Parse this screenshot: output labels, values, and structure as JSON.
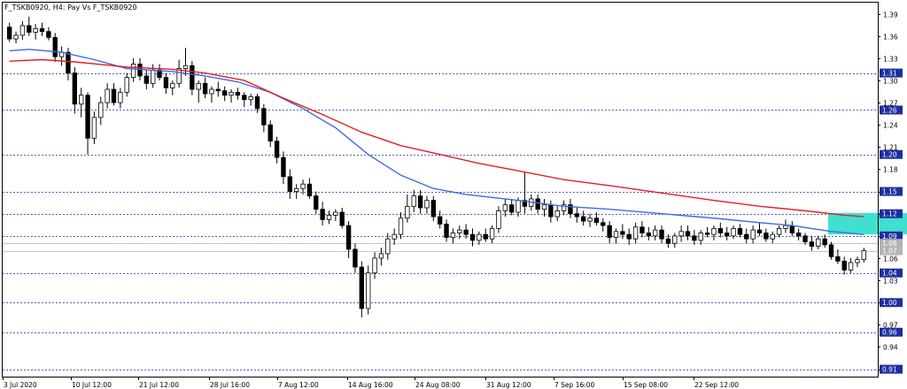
{
  "window": {
    "title": "F_TSKB0920, H4:  Pay Vs F_TSKB0920"
  },
  "colors": {
    "background": "#ffffff",
    "candle": "#000000",
    "ma_fast": "#4169e1",
    "ma_slow": "#e31e24",
    "level_line": "#1e2ea0",
    "level_badge": "#1e2ea0",
    "current_badge": "#b4b4b4",
    "zone": "#40e0d0"
  },
  "chart_data": {
    "type": "candlestick",
    "title": "",
    "ylim": [
      0.9,
      1.405
    ],
    "grid": false,
    "y_ticks": [
      "1.39",
      "1.36",
      "1.33",
      "1.30",
      "1.27",
      "1.24",
      "1.21",
      "1.18",
      "1.15",
      "1.12",
      "1.09",
      "1.06",
      "1.03",
      "1.00",
      "0.97",
      "0.94",
      "0.91"
    ],
    "x_ticks": [
      "3 Jul 2020",
      "10 Jul 12:00",
      "21 Jul 12:00",
      "28 Jul 16:00",
      "7 Aug 12:00",
      "14 Aug 16:00",
      "24 Aug 08:00",
      "31 Aug 12:00",
      "7 Sep 16:00",
      "15 Sep 08:00",
      "22 Sep 12:00"
    ],
    "levels": [
      {
        "value": 1.31,
        "label": "1.31"
      },
      {
        "value": 1.26,
        "label": "1.26"
      },
      {
        "value": 1.2,
        "label": "1.20"
      },
      {
        "value": 1.15,
        "label": "1.15"
      },
      {
        "value": 1.12,
        "label": "1.12"
      },
      {
        "value": 1.09,
        "label": "1.09"
      },
      {
        "value": 1.04,
        "label": "1.04"
      },
      {
        "value": 1.0,
        "label": "1.00"
      },
      {
        "value": 0.96,
        "label": "0.96"
      },
      {
        "value": 0.91,
        "label": "0.91"
      }
    ],
    "current_prices": [
      {
        "value": 1.08,
        "label": "1.08"
      },
      {
        "value": 1.07,
        "label": "1.07"
      }
    ],
    "zone": {
      "x_start": 126,
      "x_end": 138,
      "y_low": 1.092,
      "y_high": 1.121
    },
    "candle_count": 132,
    "candles": [
      [
        1.372,
        1.378,
        1.352,
        1.356
      ],
      [
        1.356,
        1.366,
        1.35,
        1.361
      ],
      [
        1.361,
        1.38,
        1.355,
        1.374
      ],
      [
        1.374,
        1.386,
        1.36,
        1.365
      ],
      [
        1.365,
        1.376,
        1.355,
        1.37
      ],
      [
        1.37,
        1.378,
        1.36,
        1.366
      ],
      [
        1.366,
        1.372,
        1.354,
        1.358
      ],
      [
        1.358,
        1.364,
        1.325,
        1.332
      ],
      [
        1.332,
        1.346,
        1.32,
        1.338
      ],
      [
        1.338,
        1.344,
        1.3,
        1.31
      ],
      [
        1.31,
        1.318,
        1.255,
        1.268
      ],
      [
        1.268,
        1.29,
        1.25,
        1.28
      ],
      [
        1.28,
        1.284,
        1.2,
        1.222
      ],
      [
        1.222,
        1.258,
        1.214,
        1.25
      ],
      [
        1.25,
        1.278,
        1.24,
        1.27
      ],
      [
        1.27,
        1.296,
        1.262,
        1.288
      ],
      [
        1.288,
        1.296,
        1.266,
        1.27
      ],
      [
        1.27,
        1.29,
        1.262,
        1.284
      ],
      [
        1.284,
        1.31,
        1.278,
        1.304
      ],
      [
        1.304,
        1.33,
        1.298,
        1.322
      ],
      [
        1.322,
        1.33,
        1.3,
        1.306
      ],
      [
        1.306,
        1.314,
        1.288,
        1.296
      ],
      [
        1.296,
        1.322,
        1.29,
        1.314
      ],
      [
        1.314,
        1.322,
        1.3,
        1.304
      ],
      [
        1.304,
        1.31,
        1.282,
        1.29
      ],
      [
        1.29,
        1.3,
        1.28,
        1.296
      ],
      [
        1.296,
        1.328,
        1.29,
        1.316
      ],
      [
        1.316,
        1.344,
        1.306,
        1.32
      ],
      [
        1.32,
        1.326,
        1.28,
        1.288
      ],
      [
        1.288,
        1.3,
        1.27,
        1.296
      ],
      [
        1.296,
        1.304,
        1.276,
        1.282
      ],
      [
        1.282,
        1.292,
        1.27,
        1.288
      ],
      [
        1.288,
        1.298,
        1.278,
        1.286
      ],
      [
        1.286,
        1.292,
        1.272,
        1.28
      ],
      [
        1.28,
        1.288,
        1.27,
        1.284
      ],
      [
        1.284,
        1.29,
        1.274,
        1.28
      ],
      [
        1.28,
        1.284,
        1.264,
        1.274
      ],
      [
        1.274,
        1.282,
        1.266,
        1.278
      ],
      [
        1.278,
        1.282,
        1.256,
        1.262
      ],
      [
        1.262,
        1.268,
        1.23,
        1.24
      ],
      [
        1.24,
        1.246,
        1.21,
        1.218
      ],
      [
        1.218,
        1.224,
        1.188,
        1.196
      ],
      [
        1.196,
        1.204,
        1.16,
        1.17
      ],
      [
        1.17,
        1.18,
        1.14,
        1.15
      ],
      [
        1.15,
        1.16,
        1.14,
        1.154
      ],
      [
        1.154,
        1.166,
        1.146,
        1.16
      ],
      [
        1.16,
        1.168,
        1.14,
        1.144
      ],
      [
        1.144,
        1.15,
        1.12,
        1.126
      ],
      [
        1.126,
        1.136,
        1.104,
        1.112
      ],
      [
        1.112,
        1.124,
        1.106,
        1.118
      ],
      [
        1.118,
        1.126,
        1.11,
        1.122
      ],
      [
        1.122,
        1.128,
        1.1,
        1.104
      ],
      [
        1.104,
        1.11,
        1.06,
        1.072
      ],
      [
        1.072,
        1.08,
        1.04,
        1.048
      ],
      [
        1.048,
        1.056,
        0.98,
        0.992
      ],
      [
        0.992,
        1.05,
        0.984,
        1.04
      ],
      [
        1.04,
        1.068,
        1.032,
        1.06
      ],
      [
        1.06,
        1.074,
        1.05,
        1.066
      ],
      [
        1.066,
        1.094,
        1.058,
        1.086
      ],
      [
        1.086,
        1.1,
        1.078,
        1.092
      ],
      [
        1.092,
        1.122,
        1.086,
        1.114
      ],
      [
        1.114,
        1.146,
        1.108,
        1.13
      ],
      [
        1.13,
        1.152,
        1.122,
        1.144
      ],
      [
        1.144,
        1.152,
        1.12,
        1.128
      ],
      [
        1.128,
        1.144,
        1.12,
        1.138
      ],
      [
        1.138,
        1.144,
        1.11,
        1.116
      ],
      [
        1.116,
        1.124,
        1.1,
        1.106
      ],
      [
        1.106,
        1.112,
        1.082,
        1.088
      ],
      [
        1.088,
        1.1,
        1.08,
        1.094
      ],
      [
        1.094,
        1.104,
        1.086,
        1.098
      ],
      [
        1.098,
        1.106,
        1.086,
        1.092
      ],
      [
        1.092,
        1.1,
        1.076,
        1.084
      ],
      [
        1.084,
        1.096,
        1.078,
        1.092
      ],
      [
        1.092,
        1.1,
        1.082,
        1.086
      ],
      [
        1.086,
        1.104,
        1.08,
        1.1
      ],
      [
        1.1,
        1.13,
        1.094,
        1.124
      ],
      [
        1.124,
        1.14,
        1.116,
        1.132
      ],
      [
        1.132,
        1.14,
        1.118,
        1.122
      ],
      [
        1.122,
        1.142,
        1.116,
        1.138
      ],
      [
        1.138,
        1.176,
        1.12,
        1.13
      ],
      [
        1.13,
        1.146,
        1.124,
        1.14
      ],
      [
        1.14,
        1.146,
        1.12,
        1.126
      ],
      [
        1.126,
        1.14,
        1.116,
        1.132
      ],
      [
        1.132,
        1.138,
        1.108,
        1.116
      ],
      [
        1.116,
        1.13,
        1.11,
        1.124
      ],
      [
        1.124,
        1.138,
        1.118,
        1.132
      ],
      [
        1.132,
        1.14,
        1.114,
        1.12
      ],
      [
        1.12,
        1.128,
        1.108,
        1.116
      ],
      [
        1.116,
        1.124,
        1.104,
        1.11
      ],
      [
        1.11,
        1.12,
        1.102,
        1.114
      ],
      [
        1.114,
        1.122,
        1.104,
        1.108
      ],
      [
        1.108,
        1.114,
        1.096,
        1.104
      ],
      [
        1.104,
        1.11,
        1.08,
        1.088
      ],
      [
        1.088,
        1.1,
        1.08,
        1.096
      ],
      [
        1.096,
        1.106,
        1.086,
        1.092
      ],
      [
        1.092,
        1.1,
        1.078,
        1.086
      ],
      [
        1.086,
        1.108,
        1.08,
        1.102
      ],
      [
        1.102,
        1.11,
        1.088,
        1.094
      ],
      [
        1.094,
        1.102,
        1.084,
        1.09
      ],
      [
        1.09,
        1.104,
        1.084,
        1.098
      ],
      [
        1.098,
        1.104,
        1.08,
        1.086
      ],
      [
        1.086,
        1.092,
        1.074,
        1.08
      ],
      [
        1.08,
        1.094,
        1.074,
        1.09
      ],
      [
        1.09,
        1.104,
        1.082,
        1.096
      ],
      [
        1.096,
        1.104,
        1.084,
        1.09
      ],
      [
        1.09,
        1.098,
        1.078,
        1.084
      ],
      [
        1.084,
        1.098,
        1.078,
        1.094
      ],
      [
        1.094,
        1.102,
        1.088,
        1.092
      ],
      [
        1.092,
        1.104,
        1.084,
        1.1
      ],
      [
        1.1,
        1.108,
        1.088,
        1.094
      ],
      [
        1.094,
        1.102,
        1.084,
        1.09
      ],
      [
        1.09,
        1.104,
        1.086,
        1.1
      ],
      [
        1.1,
        1.106,
        1.088,
        1.092
      ],
      [
        1.092,
        1.1,
        1.08,
        1.086
      ],
      [
        1.086,
        1.104,
        1.08,
        1.098
      ],
      [
        1.098,
        1.108,
        1.09,
        1.094
      ],
      [
        1.094,
        1.1,
        1.082,
        1.086
      ],
      [
        1.086,
        1.096,
        1.08,
        1.092
      ],
      [
        1.092,
        1.104,
        1.088,
        1.1
      ],
      [
        1.1,
        1.112,
        1.094,
        1.104
      ],
      [
        1.104,
        1.11,
        1.09,
        1.094
      ],
      [
        1.094,
        1.1,
        1.084,
        1.09
      ],
      [
        1.09,
        1.094,
        1.078,
        1.082
      ],
      [
        1.082,
        1.09,
        1.07,
        1.076
      ],
      [
        1.076,
        1.09,
        1.072,
        1.086
      ],
      [
        1.086,
        1.092,
        1.074,
        1.078
      ],
      [
        1.078,
        1.082,
        1.058,
        1.062
      ],
      [
        1.062,
        1.072,
        1.052,
        1.056
      ],
      [
        1.056,
        1.062,
        1.038,
        1.044
      ],
      [
        1.044,
        1.06,
        1.04,
        1.054
      ],
      [
        1.054,
        1.062,
        1.048,
        1.058
      ],
      [
        1.058,
        1.074,
        1.054,
        1.07
      ]
    ],
    "ma_fast": [
      [
        0,
        1.34
      ],
      [
        3,
        1.342
      ],
      [
        8,
        1.338
      ],
      [
        13,
        1.328
      ],
      [
        18,
        1.316
      ],
      [
        25,
        1.312
      ],
      [
        30,
        1.306
      ],
      [
        35,
        1.298
      ],
      [
        40,
        1.284
      ],
      [
        45,
        1.262
      ],
      [
        50,
        1.236
      ],
      [
        55,
        1.2
      ],
      [
        60,
        1.172
      ],
      [
        65,
        1.154
      ],
      [
        70,
        1.146
      ],
      [
        78,
        1.138
      ],
      [
        85,
        1.13
      ],
      [
        92,
        1.126
      ],
      [
        100,
        1.12
      ],
      [
        108,
        1.114
      ],
      [
        115,
        1.108
      ],
      [
        120,
        1.104
      ],
      [
        126,
        1.096
      ],
      [
        131,
        1.092
      ]
    ],
    "ma_slow": [
      [
        0,
        1.326
      ],
      [
        5,
        1.328
      ],
      [
        10,
        1.325
      ],
      [
        18,
        1.318
      ],
      [
        25,
        1.315
      ],
      [
        30,
        1.31
      ],
      [
        36,
        1.3
      ],
      [
        42,
        1.276
      ],
      [
        48,
        1.254
      ],
      [
        54,
        1.23
      ],
      [
        60,
        1.212
      ],
      [
        66,
        1.2
      ],
      [
        72,
        1.188
      ],
      [
        78,
        1.178
      ],
      [
        85,
        1.166
      ],
      [
        92,
        1.158
      ],
      [
        100,
        1.148
      ],
      [
        108,
        1.138
      ],
      [
        115,
        1.13
      ],
      [
        122,
        1.124
      ],
      [
        128,
        1.118
      ],
      [
        131,
        1.116
      ]
    ]
  }
}
